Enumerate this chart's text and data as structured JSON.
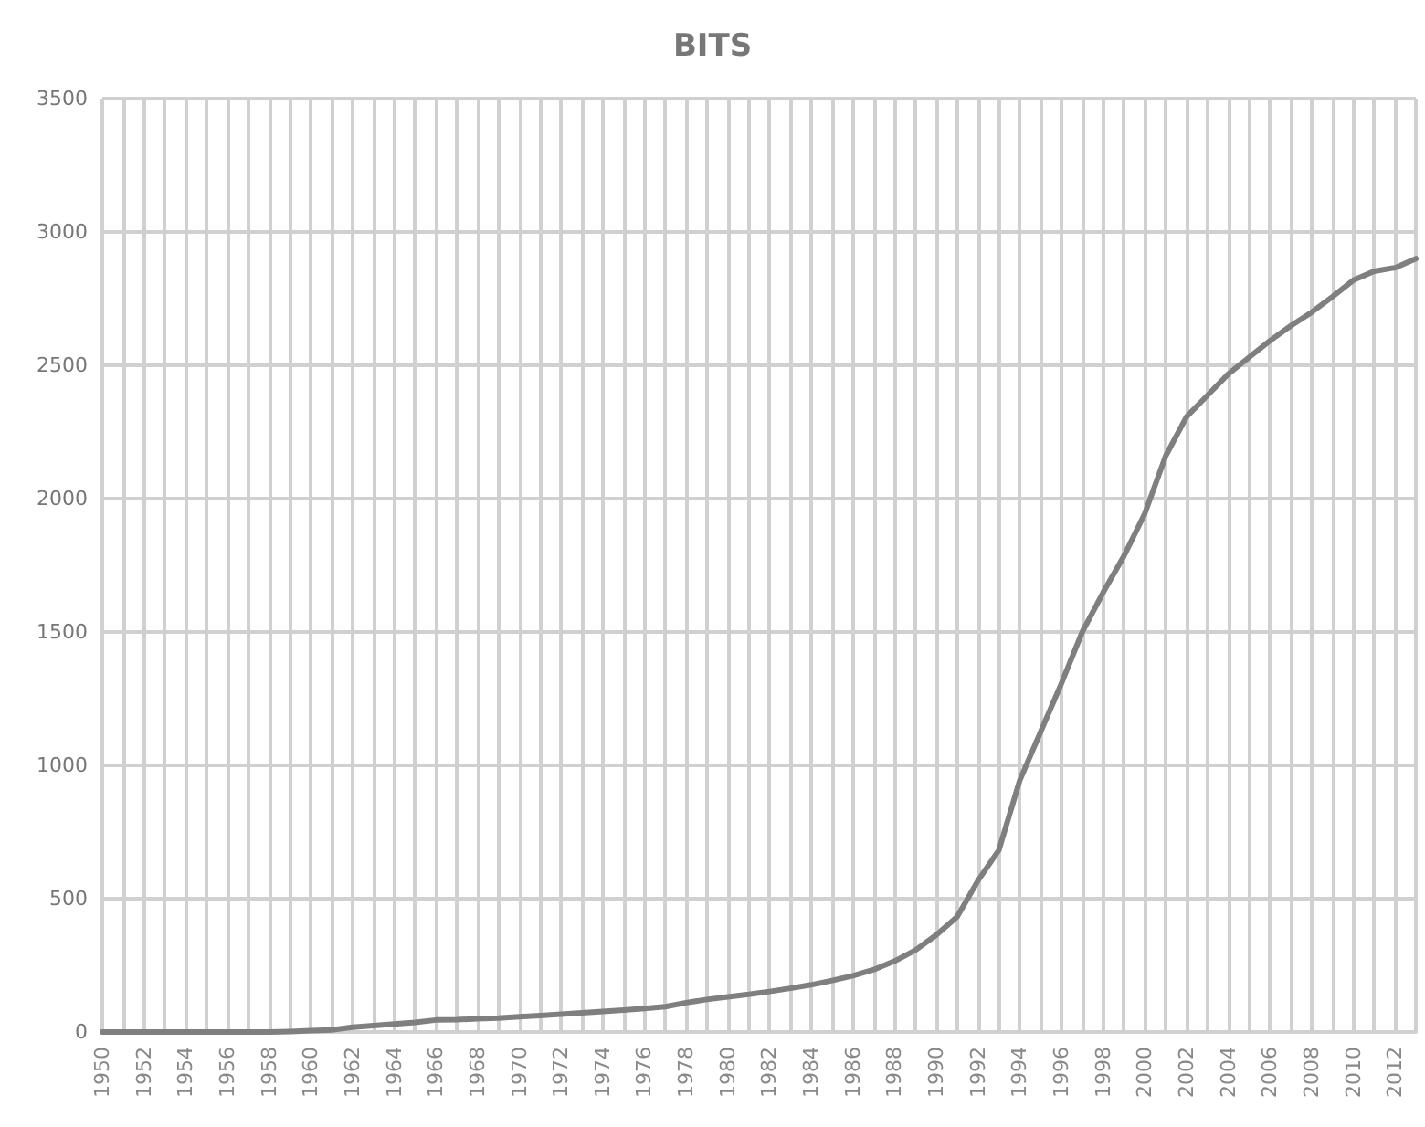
{
  "chart_data": {
    "type": "line",
    "title": "BITS",
    "categories": [
      "1950",
      null,
      "1952",
      null,
      "1954",
      null,
      "1956",
      null,
      "1958",
      null,
      "1960",
      null,
      "1962",
      null,
      "1964",
      null,
      "1966",
      null,
      "1968",
      null,
      "1970",
      null,
      "1972",
      null,
      "1974",
      null,
      "1976",
      null,
      "1978",
      null,
      "1980",
      null,
      "1982",
      null,
      "1984",
      null,
      "1986",
      null,
      "1988",
      null,
      "1990",
      null,
      "1992",
      null,
      "1994",
      null,
      "1996",
      null,
      "1998",
      null,
      "2000",
      null,
      "2002",
      null,
      "2004",
      null,
      "2006",
      null,
      "2008",
      null,
      "2010",
      null,
      "2012",
      null
    ],
    "series": [
      {
        "color": "#7f7f7f",
        "values": [
          0,
          0,
          0,
          0,
          0,
          0,
          0,
          0,
          0,
          2,
          5,
          8,
          18,
          24,
          30,
          36,
          45,
          46,
          50,
          52,
          57,
          62,
          67,
          72,
          77,
          82,
          88,
          95,
          110,
          122,
          132,
          141,
          152,
          164,
          177,
          193,
          211,
          234,
          266,
          307,
          364,
          432,
          568,
          682,
          943,
          1125,
          1307,
          1500,
          1648,
          1785,
          1944,
          2160,
          2307,
          2387,
          2467,
          2530,
          2592,
          2648,
          2699,
          2757,
          2819,
          2853,
          2866,
          2900
        ]
      }
    ],
    "ylim": [
      0,
      3500
    ],
    "yticks": [
      0,
      500,
      1000,
      1500,
      2000,
      2500,
      3000,
      3500
    ],
    "grid": true,
    "marker": "none",
    "line_style": "solid"
  }
}
